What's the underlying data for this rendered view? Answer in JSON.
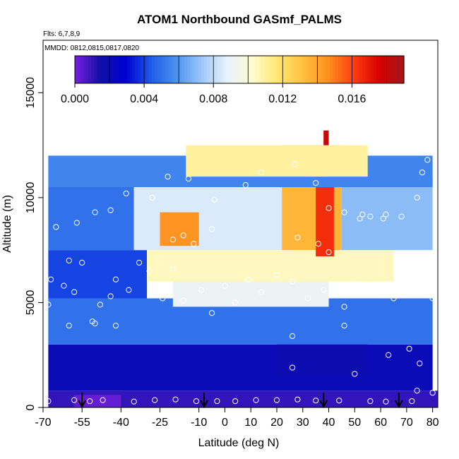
{
  "chart_data": {
    "type": "heatmap",
    "title": "ATOM1 Northbound GASmf_PALMS",
    "subtitle": "Flts: 6,7,8,9",
    "annotation": "MMDD: 0812,0815,0817,0820",
    "xlabel": "Latitude (deg N)",
    "ylabel": "Altitude (m)",
    "xlim": [
      -70,
      82
    ],
    "ylim": [
      0,
      17500
    ],
    "x_ticks": [
      -70,
      -55,
      -40,
      -25,
      -10,
      0,
      10,
      20,
      30,
      40,
      50,
      60,
      70,
      80
    ],
    "x_tick_labels": [
      "-70",
      "-55",
      "-40",
      "-25",
      "-10",
      "0",
      "10",
      "20",
      "30",
      "40",
      "50",
      "60",
      "70",
      "80"
    ],
    "y_ticks": [
      0,
      5000,
      10000,
      15000
    ],
    "y_tick_labels": [
      "0",
      "5000",
      "10000",
      "15000"
    ],
    "colorbar": {
      "min": 0.0,
      "max": 0.019,
      "tick_values": [
        0.0,
        0.004,
        0.008,
        0.012,
        0.016
      ],
      "tick_labels": [
        "0.000",
        "0.004",
        "0.008",
        "0.012",
        "0.016"
      ],
      "colors": [
        "#7a1fe0",
        "#1010a8",
        "#0000d0",
        "#1e5ce8",
        "#4a90f0",
        "#9cc8f8",
        "#e8f2fc",
        "#fffbd0",
        "#ffe870",
        "#ffc040",
        "#ff9020",
        "#ff4010",
        "#d80000",
        "#a01818"
      ]
    },
    "grid": false,
    "legend": "colorbar top inside plot",
    "regions": [
      {
        "lat": [
          -68,
          82
        ],
        "alt": [
          0,
          800
        ],
        "value": 0.001
      },
      {
        "lat": [
          -58,
          -40
        ],
        "alt": [
          0,
          600
        ],
        "value": 0.0003
      },
      {
        "lat": [
          -68,
          80
        ],
        "alt": [
          800,
          3000
        ],
        "value": 0.002
      },
      {
        "lat": [
          20,
          55
        ],
        "alt": [
          1500,
          4000
        ],
        "value": 0.0018
      },
      {
        "lat": [
          -68,
          80
        ],
        "alt": [
          3000,
          5200
        ],
        "value": 0.005
      },
      {
        "lat": [
          -20,
          40
        ],
        "alt": [
          4800,
          6200
        ],
        "value": 0.009
      },
      {
        "lat": [
          -68,
          -30
        ],
        "alt": [
          5200,
          7500
        ],
        "value": 0.004
      },
      {
        "lat": [
          -30,
          65
        ],
        "alt": [
          6000,
          7500
        ],
        "value": 0.0105
      },
      {
        "lat": [
          -68,
          -35
        ],
        "alt": [
          7500,
          10500
        ],
        "value": 0.005
      },
      {
        "lat": [
          -35,
          25
        ],
        "alt": [
          7500,
          10500
        ],
        "value": 0.0085
      },
      {
        "lat": [
          -25,
          -10
        ],
        "alt": [
          7700,
          9300
        ],
        "value": 0.0145
      },
      {
        "lat": [
          22,
          45
        ],
        "alt": [
          7500,
          12500
        ],
        "value": 0.0135
      },
      {
        "lat": [
          35,
          42
        ],
        "alt": [
          7200,
          12500
        ],
        "value": 0.0165
      },
      {
        "lat": [
          45,
          80
        ],
        "alt": [
          7500,
          11000
        ],
        "value": 0.007
      },
      {
        "lat": [
          -68,
          80
        ],
        "alt": [
          10500,
          12000
        ],
        "value": 0.0055
      },
      {
        "lat": [
          -15,
          55
        ],
        "alt": [
          11000,
          12500
        ],
        "value": 0.011
      },
      {
        "lat": [
          38,
          40
        ],
        "alt": [
          12500,
          13200
        ],
        "value": 0.018
      }
    ],
    "sample_points": [
      [
        -68,
        300
      ],
      [
        -58,
        350
      ],
      [
        -52,
        300
      ],
      [
        -47,
        350
      ],
      [
        -35,
        280
      ],
      [
        -27,
        350
      ],
      [
        -19,
        380
      ],
      [
        -11,
        300
      ],
      [
        -3,
        300
      ],
      [
        4,
        300
      ],
      [
        12,
        350
      ],
      [
        20,
        350
      ],
      [
        28,
        380
      ],
      [
        35,
        330
      ],
      [
        44,
        330
      ],
      [
        56,
        300
      ],
      [
        62,
        280
      ],
      [
        72,
        300
      ],
      [
        80,
        700
      ],
      [
        -68,
        4900
      ],
      [
        -67,
        6100
      ],
      [
        -62,
        5800
      ],
      [
        -60,
        7000
      ],
      [
        -58,
        5500
      ],
      [
        -55,
        6900
      ],
      [
        -51,
        4100
      ],
      [
        -48,
        4900
      ],
      [
        -44,
        5300
      ],
      [
        -42,
        6100
      ],
      [
        -37,
        5600
      ],
      [
        -33,
        6900
      ],
      [
        -29,
        6500
      ],
      [
        -24,
        5200
      ],
      [
        -20,
        6600
      ],
      [
        -16,
        5100
      ],
      [
        -9,
        5600
      ],
      [
        -5,
        4500
      ],
      [
        0,
        5800
      ],
      [
        4,
        5000
      ],
      [
        9,
        6100
      ],
      [
        14,
        5500
      ],
      [
        20,
        6300
      ],
      [
        26,
        6000
      ],
      [
        32,
        5200
      ],
      [
        38,
        5600
      ],
      [
        46,
        4800
      ],
      [
        50,
        5900
      ],
      [
        58,
        5400
      ],
      [
        65,
        5200
      ],
      [
        70,
        6300
      ],
      [
        74,
        5900
      ],
      [
        78,
        6100
      ],
      [
        80,
        5200
      ],
      [
        -60,
        3900
      ],
      [
        -50,
        4000
      ],
      [
        -42,
        3900
      ],
      [
        26,
        3400
      ],
      [
        46,
        3900
      ],
      [
        63,
        2500
      ],
      [
        71,
        2800
      ],
      [
        75,
        2100
      ],
      [
        26,
        1900
      ],
      [
        50,
        1600
      ],
      [
        74,
        800
      ],
      [
        -65,
        8600
      ],
      [
        -57,
        8800
      ],
      [
        -50,
        9300
      ],
      [
        -44,
        9400
      ],
      [
        -38,
        10200
      ],
      [
        -28,
        10000
      ],
      [
        -22,
        11000
      ],
      [
        -14,
        10900
      ],
      [
        -4,
        9900
      ],
      [
        8,
        10600
      ],
      [
        14,
        11200
      ],
      [
        27,
        11600
      ],
      [
        35,
        10700
      ],
      [
        40,
        9500
      ],
      [
        46,
        9300
      ],
      [
        53,
        9200
      ],
      [
        62,
        9200
      ],
      [
        68,
        9100
      ],
      [
        74,
        10000
      ],
      [
        76,
        11200
      ],
      [
        78,
        11800
      ],
      [
        -20,
        8000
      ],
      [
        -16,
        8200
      ],
      [
        -12,
        7800
      ],
      [
        -5,
        8500
      ],
      [
        28,
        8100
      ],
      [
        36,
        7800
      ],
      [
        40,
        7400
      ],
      [
        52,
        9000
      ],
      [
        56,
        9100
      ],
      [
        61,
        9000
      ]
    ],
    "arrows_lat": [
      -55,
      -8,
      38,
      67
    ]
  }
}
